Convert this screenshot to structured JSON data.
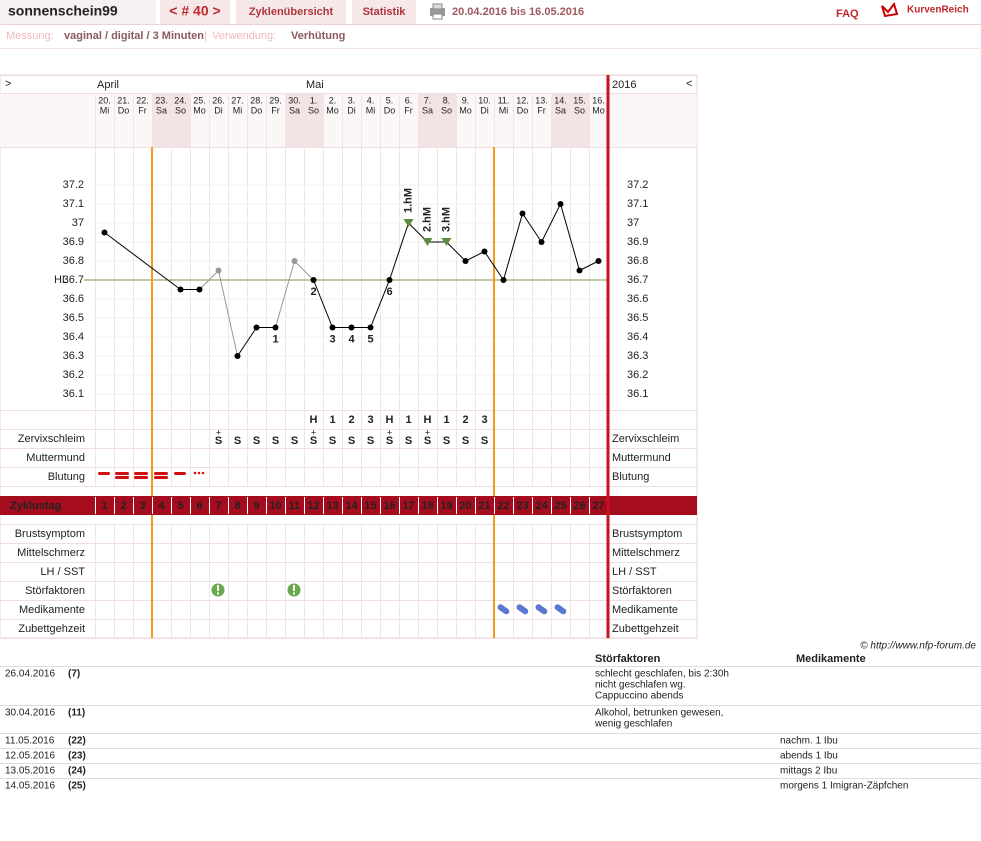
{
  "header": {
    "user": "sonnenschein99",
    "cycle_nav": "< # 40 >",
    "tabs": [
      "Zyklenübersicht",
      "Statistik"
    ],
    "range": "20.04.2016 bis 16.05.2016",
    "faq": "FAQ",
    "logo": "KurvenReich"
  },
  "settings_bar": {
    "measure_label": "Messung:",
    "measure": "vaginal / digital / 3 Minuten",
    "separator": "|",
    "use_label": "Verwendung:",
    "use": "Verhütung"
  },
  "chart_data": {
    "type": "line",
    "nav_prev": ">",
    "nav_next": "<",
    "year": "2016",
    "month_labels": [
      "April",
      null,
      null,
      null,
      null,
      null,
      null,
      null,
      null,
      null,
      null,
      "Mai",
      null,
      null,
      null,
      null,
      null,
      null,
      null,
      null,
      null,
      null,
      null,
      null,
      null,
      null,
      null
    ],
    "categories": [
      "20.",
      "21.",
      "22.",
      "23.",
      "24.",
      "25.",
      "26.",
      "27.",
      "28.",
      "29.",
      "30.",
      "1.",
      "2.",
      "3.",
      "4.",
      "5.",
      "6.",
      "7.",
      "8.",
      "9.",
      "10.",
      "11.",
      "12.",
      "13.",
      "14.",
      "15.",
      "16."
    ],
    "weekdays": [
      "Mi",
      "Do",
      "Fr",
      "Sa",
      "So",
      "Mo",
      "Di",
      "Mi",
      "Do",
      "Fr",
      "Sa",
      "So",
      "Mo",
      "Di",
      "Mi",
      "Do",
      "Fr",
      "Sa",
      "So",
      "Mo",
      "Di",
      "Mi",
      "Do",
      "Fr",
      "Sa",
      "So",
      "Mo"
    ],
    "shaded_columns": [
      3,
      4,
      10,
      11,
      17,
      18,
      24,
      25
    ],
    "series": [
      {
        "name": "Temperatur",
        "color": "#000000",
        "values": [
          36.95,
          null,
          null,
          null,
          36.65,
          36.65,
          36.75,
          36.3,
          36.45,
          36.45,
          36.8,
          36.7,
          36.45,
          36.45,
          36.45,
          36.7,
          37.0,
          36.9,
          36.9,
          36.8,
          36.85,
          36.7,
          37.05,
          36.9,
          37.1,
          36.75,
          36.8
        ],
        "point_colors": [
          "#000000",
          null,
          null,
          null,
          "#000000",
          "#000000",
          "#999999",
          "#000000",
          "#000000",
          "#000000",
          "#999999",
          "#000000",
          "#000000",
          "#000000",
          "#000000",
          "#000000",
          "#000000",
          "#000000",
          "#000000",
          "#000000",
          "#000000",
          "#000000",
          "#000000",
          "#000000",
          "#000000",
          "#000000",
          "#000000"
        ],
        "point_labels": [
          null,
          null,
          null,
          null,
          null,
          null,
          null,
          null,
          null,
          "1",
          null,
          "2",
          "3",
          "4",
          "5",
          "6",
          null,
          null,
          null,
          null,
          null,
          null,
          null,
          null,
          null,
          null,
          null
        ],
        "hm_labels": [
          null,
          null,
          null,
          null,
          null,
          null,
          null,
          null,
          null,
          null,
          null,
          null,
          null,
          null,
          null,
          null,
          "1.hM",
          "2.hM",
          "3.hM",
          null,
          null,
          null,
          null,
          null,
          null,
          null,
          null
        ]
      }
    ],
    "ylim": [
      36.0,
      37.4
    ],
    "yticks": [
      36.1,
      36.2,
      36.3,
      36.4,
      36.5,
      36.6,
      36.7,
      36.8,
      36.9,
      37,
      37.1,
      37.2
    ],
    "coverline": {
      "value": 36.7,
      "label": "HL",
      "color": "#7a9a3a"
    },
    "peak_row": [
      null,
      null,
      null,
      null,
      null,
      null,
      null,
      null,
      null,
      null,
      null,
      "H",
      "1",
      "2",
      "3",
      "H",
      "1",
      "H",
      "1",
      "2",
      "3",
      null,
      null,
      null,
      null,
      null,
      null
    ],
    "mucus": [
      null,
      null,
      null,
      null,
      null,
      null,
      "S",
      "S",
      "S",
      "S",
      "S",
      "S",
      "S",
      "S",
      "S",
      "S",
      "S",
      "S",
      "S",
      "S",
      "S",
      null,
      null,
      null,
      null,
      null,
      null
    ],
    "mucus_marks": [
      null,
      null,
      null,
      null,
      null,
      null,
      "+",
      null,
      null,
      null,
      null,
      "+",
      null,
      null,
      null,
      "+",
      null,
      "+",
      null,
      null,
      null,
      null,
      null,
      null,
      null,
      null,
      null
    ],
    "row_labels": {
      "mucus": "Zervixschleim",
      "cervix": "Muttermund",
      "bleeding": "Blutung",
      "cycle_day": "Zyklustag",
      "breast": "Brustsymptom",
      "midpain": "Mittelschmerz",
      "lh": "LH / SST",
      "disturbance": "Störfaktoren",
      "medication": "Medikamente",
      "bedtime": "Zubettgehzeit"
    },
    "cycle_days": [
      1,
      2,
      3,
      4,
      5,
      6,
      7,
      8,
      9,
      10,
      11,
      12,
      13,
      14,
      15,
      16,
      17,
      18,
      19,
      20,
      21,
      22,
      23,
      24,
      25,
      26,
      27
    ],
    "cover_lines_after_day": [
      3,
      21
    ],
    "copyright": "© http://www.nfp-forum.de"
  },
  "notes": {
    "headers": [
      "Störfaktoren",
      "Medikamente"
    ],
    "rows": [
      {
        "date": "26.04.2016",
        "day": "(7)",
        "disturbance": [
          "schlecht geschlafen, bis 2:30h",
          "nicht geschlafen wg.",
          "Cappuccino abends"
        ]
      },
      {
        "date": "30.04.2016",
        "day": "(11)",
        "disturbance": [
          "Alkohol, betrunken gewesen,",
          "wenig geschlafen"
        ]
      },
      {
        "date": "11.05.2016",
        "day": "(22)",
        "medication": [
          "nachm. 1 Ibu"
        ]
      },
      {
        "date": "12.05.2016",
        "day": "(23)",
        "medication": [
          "abends 1 Ibu"
        ]
      },
      {
        "date": "13.05.2016",
        "day": "(24)",
        "medication": [
          "mittags 2 Ibu"
        ]
      },
      {
        "date": "14.05.2016",
        "day": "(25)",
        "medication": [
          "morgens 1 Imigran-Zäpfchen"
        ]
      }
    ]
  }
}
